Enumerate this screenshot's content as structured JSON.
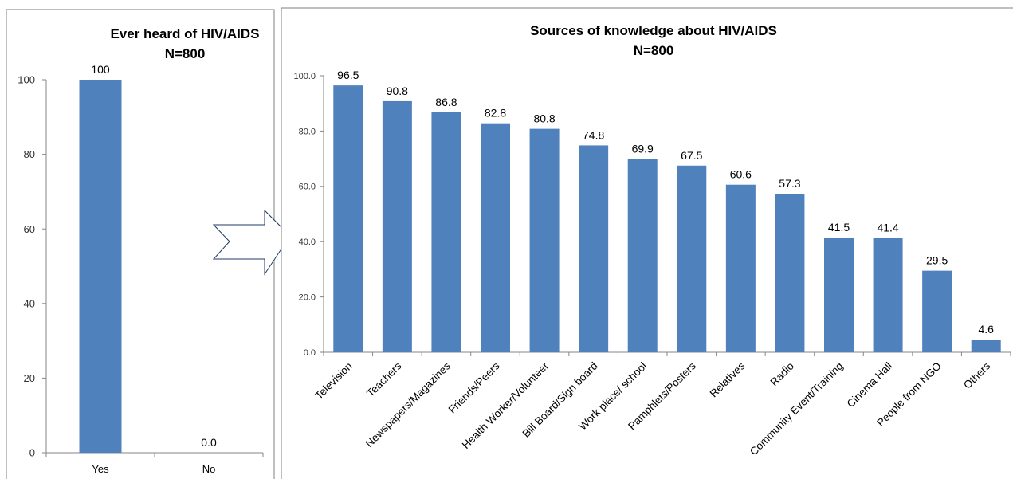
{
  "colors": {
    "bar": "#4F81BD",
    "axis": "#868686",
    "frame": "#7f7f7f",
    "arrow": "#1f3864"
  },
  "arrow": {
    "icon": "right-arrow-icon"
  },
  "chart_data": [
    {
      "type": "bar",
      "title": "Ever heard of HIV/AIDS",
      "subtitle": "N=800",
      "categories": [
        "Yes",
        "No"
      ],
      "values": [
        100,
        0
      ],
      "value_labels": [
        "100",
        "0.0"
      ],
      "ylim": [
        0,
        100
      ],
      "yticks": [
        0,
        20,
        40,
        60,
        80,
        100
      ],
      "ytick_labels": [
        "0",
        "20",
        "40",
        "60",
        "80",
        "100"
      ],
      "grid": false,
      "legend": "none"
    },
    {
      "type": "bar",
      "title": "Sources of knowledge about HIV/AIDS",
      "subtitle": "N=800",
      "categories": [
        "Television",
        "Teachers",
        "Newspapers/Magazines",
        "Friends/Peers",
        "Health Worker/Volunteer",
        "Bill Board/Sign board",
        "Work place/ school",
        "Pamphlets/Posters",
        "Relatives",
        "Radio",
        "Community Event/Training",
        "Cinema Hall",
        "People from NGO",
        "Others"
      ],
      "values": [
        96.5,
        90.8,
        86.8,
        82.8,
        80.8,
        74.8,
        69.9,
        67.5,
        60.6,
        57.3,
        41.5,
        41.4,
        29.5,
        4.6
      ],
      "value_labels": [
        "96.5",
        "90.8",
        "86.8",
        "82.8",
        "80.8",
        "74.8",
        "69.9",
        "67.5",
        "60.6",
        "57.3",
        "41.5",
        "41.4",
        "29.5",
        "4.6"
      ],
      "ylim": [
        0,
        100
      ],
      "yticks": [
        0,
        20,
        40,
        60,
        80,
        100
      ],
      "ytick_labels": [
        "0.0",
        "20.0",
        "40.0",
        "60.0",
        "80.0",
        "100.0"
      ],
      "grid": false,
      "legend": "none"
    }
  ]
}
